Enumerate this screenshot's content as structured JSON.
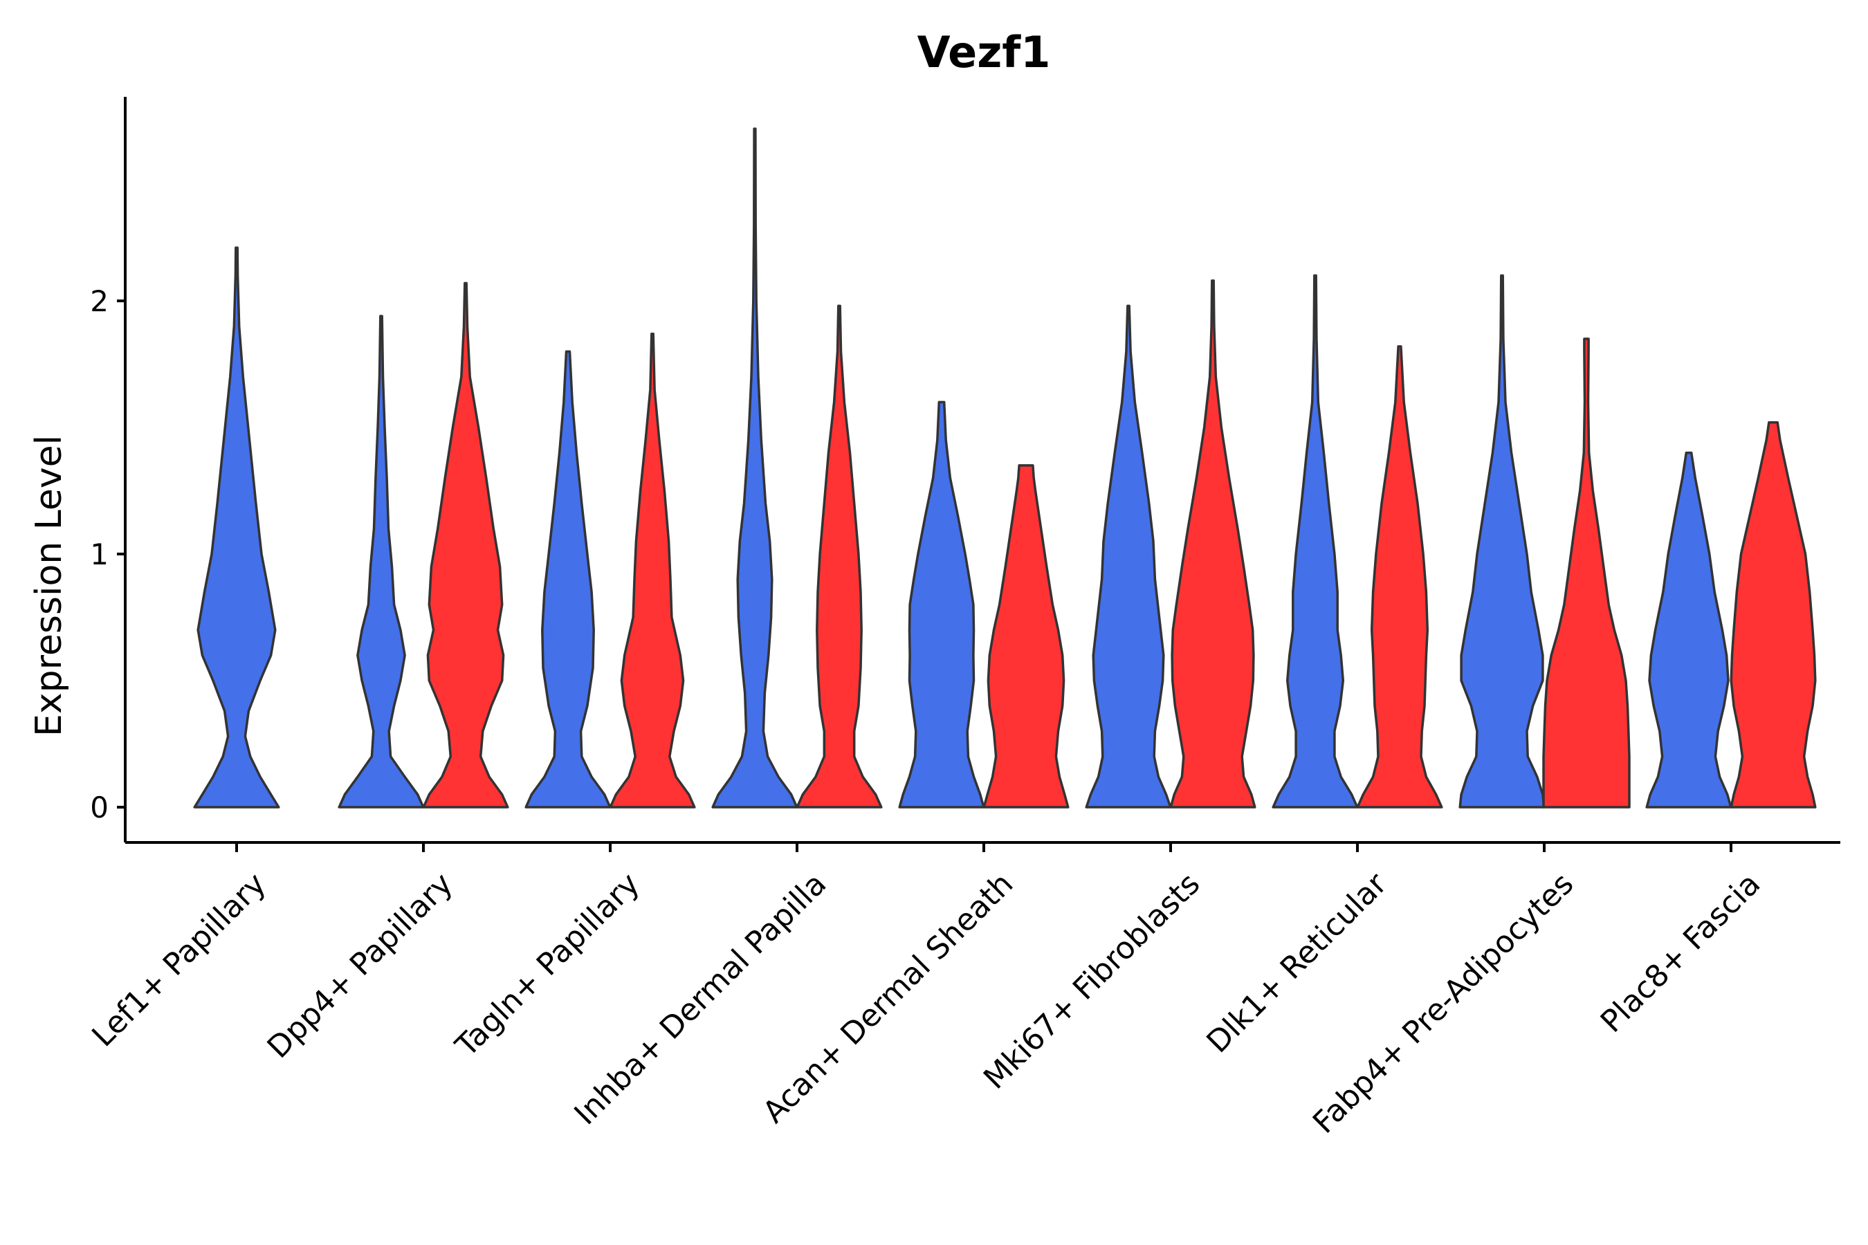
{
  "chart_data": {
    "type": "violin",
    "title": "Vezf1",
    "xlabel": "",
    "ylabel": "Expression Level",
    "ylim": [
      -0.13,
      2.8
    ],
    "yticks": [
      0,
      1,
      2
    ],
    "categories": [
      "Lef1+ Papillary",
      "Dpp4+ Papillary",
      "Tagln+ Papillary",
      "Inhba+ Dermal Papilla",
      "Acan+ Dermal Sheath",
      "Mki67+ Fibroblasts",
      "Dlk1+ Reticular",
      "Fabp4+ Pre-Adipocytes",
      "Plac8+ Fascia"
    ],
    "colors": {
      "blue": "#4470EA",
      "red": "#FF3333"
    },
    "violins": [
      {
        "category": "Lef1+ Papillary",
        "group": "blue",
        "offset": 0,
        "max": 2.21,
        "profile": [
          [
            0,
            0.98
          ],
          [
            0.05,
            0.8
          ],
          [
            0.12,
            0.55
          ],
          [
            0.2,
            0.32
          ],
          [
            0.28,
            0.2
          ],
          [
            0.38,
            0.28
          ],
          [
            0.5,
            0.55
          ],
          [
            0.6,
            0.8
          ],
          [
            0.7,
            0.9
          ],
          [
            0.85,
            0.75
          ],
          [
            1.0,
            0.58
          ],
          [
            1.2,
            0.45
          ],
          [
            1.45,
            0.3
          ],
          [
            1.7,
            0.15
          ],
          [
            1.9,
            0.06
          ],
          [
            2.1,
            0.025
          ],
          [
            2.21,
            0.02
          ]
        ]
      },
      {
        "category": "Dpp4+ Papillary",
        "group": "blue",
        "offset": -1,
        "max": 1.94,
        "profile": [
          [
            0,
            0.98
          ],
          [
            0.05,
            0.85
          ],
          [
            0.12,
            0.55
          ],
          [
            0.2,
            0.22
          ],
          [
            0.3,
            0.18
          ],
          [
            0.4,
            0.3
          ],
          [
            0.5,
            0.45
          ],
          [
            0.6,
            0.55
          ],
          [
            0.7,
            0.45
          ],
          [
            0.8,
            0.3
          ],
          [
            0.95,
            0.25
          ],
          [
            1.1,
            0.17
          ],
          [
            1.3,
            0.13
          ],
          [
            1.5,
            0.08
          ],
          [
            1.7,
            0.04
          ],
          [
            1.94,
            0.02
          ]
        ]
      },
      {
        "category": "Dpp4+ Papillary",
        "group": "red",
        "offset": 1,
        "max": 2.07,
        "profile": [
          [
            0,
            0.98
          ],
          [
            0.05,
            0.85
          ],
          [
            0.12,
            0.55
          ],
          [
            0.2,
            0.35
          ],
          [
            0.3,
            0.4
          ],
          [
            0.4,
            0.6
          ],
          [
            0.5,
            0.85
          ],
          [
            0.6,
            0.88
          ],
          [
            0.7,
            0.75
          ],
          [
            0.8,
            0.85
          ],
          [
            0.95,
            0.8
          ],
          [
            1.1,
            0.65
          ],
          [
            1.3,
            0.48
          ],
          [
            1.5,
            0.3
          ],
          [
            1.7,
            0.1
          ],
          [
            1.9,
            0.04
          ],
          [
            2.07,
            0.02
          ]
        ]
      },
      {
        "category": "Tagln+ Papillary",
        "group": "blue",
        "offset": -1,
        "max": 1.8,
        "profile": [
          [
            0,
            0.98
          ],
          [
            0.05,
            0.85
          ],
          [
            0.12,
            0.55
          ],
          [
            0.2,
            0.32
          ],
          [
            0.3,
            0.3
          ],
          [
            0.4,
            0.45
          ],
          [
            0.55,
            0.58
          ],
          [
            0.7,
            0.6
          ],
          [
            0.85,
            0.55
          ],
          [
            1.0,
            0.45
          ],
          [
            1.2,
            0.32
          ],
          [
            1.4,
            0.2
          ],
          [
            1.6,
            0.1
          ],
          [
            1.8,
            0.04
          ]
        ]
      },
      {
        "category": "Tagln+ Papillary",
        "group": "red",
        "offset": 1,
        "max": 1.87,
        "profile": [
          [
            0,
            0.98
          ],
          [
            0.05,
            0.85
          ],
          [
            0.12,
            0.55
          ],
          [
            0.2,
            0.4
          ],
          [
            0.3,
            0.5
          ],
          [
            0.4,
            0.65
          ],
          [
            0.5,
            0.72
          ],
          [
            0.6,
            0.65
          ],
          [
            0.75,
            0.45
          ],
          [
            0.9,
            0.42
          ],
          [
            1.05,
            0.38
          ],
          [
            1.25,
            0.28
          ],
          [
            1.45,
            0.16
          ],
          [
            1.65,
            0.05
          ],
          [
            1.87,
            0.02
          ]
        ]
      },
      {
        "category": "Inhba+ Dermal Papilla",
        "group": "blue",
        "offset": -1,
        "max": 2.68,
        "profile": [
          [
            0,
            0.98
          ],
          [
            0.05,
            0.85
          ],
          [
            0.12,
            0.55
          ],
          [
            0.2,
            0.3
          ],
          [
            0.3,
            0.2
          ],
          [
            0.45,
            0.23
          ],
          [
            0.6,
            0.32
          ],
          [
            0.75,
            0.38
          ],
          [
            0.9,
            0.4
          ],
          [
            1.05,
            0.35
          ],
          [
            1.2,
            0.25
          ],
          [
            1.45,
            0.15
          ],
          [
            1.7,
            0.08
          ],
          [
            2.0,
            0.035
          ],
          [
            2.3,
            0.02
          ],
          [
            2.68,
            0.015
          ]
        ]
      },
      {
        "category": "Inhba+ Dermal Papilla",
        "group": "red",
        "offset": 1,
        "max": 1.98,
        "profile": [
          [
            0,
            0.98
          ],
          [
            0.05,
            0.85
          ],
          [
            0.12,
            0.55
          ],
          [
            0.2,
            0.35
          ],
          [
            0.3,
            0.35
          ],
          [
            0.4,
            0.45
          ],
          [
            0.55,
            0.5
          ],
          [
            0.7,
            0.52
          ],
          [
            0.85,
            0.5
          ],
          [
            1.0,
            0.45
          ],
          [
            1.2,
            0.35
          ],
          [
            1.4,
            0.25
          ],
          [
            1.6,
            0.12
          ],
          [
            1.8,
            0.04
          ],
          [
            1.98,
            0.02
          ]
        ]
      },
      {
        "category": "Acan+ Dermal Sheath",
        "group": "blue",
        "offset": -1,
        "max": 1.6,
        "profile": [
          [
            0,
            0.98
          ],
          [
            0.05,
            0.9
          ],
          [
            0.12,
            0.75
          ],
          [
            0.2,
            0.62
          ],
          [
            0.3,
            0.6
          ],
          [
            0.4,
            0.68
          ],
          [
            0.5,
            0.75
          ],
          [
            0.6,
            0.74
          ],
          [
            0.7,
            0.75
          ],
          [
            0.8,
            0.74
          ],
          [
            0.9,
            0.65
          ],
          [
            1.0,
            0.55
          ],
          [
            1.15,
            0.38
          ],
          [
            1.3,
            0.2
          ],
          [
            1.45,
            0.1
          ],
          [
            1.6,
            0.06
          ]
        ]
      },
      {
        "category": "Acan+ Dermal Sheath",
        "group": "red",
        "offset": 1,
        "max": 1.35,
        "profile": [
          [
            0,
            0.98
          ],
          [
            0.05,
            0.9
          ],
          [
            0.12,
            0.78
          ],
          [
            0.2,
            0.7
          ],
          [
            0.3,
            0.75
          ],
          [
            0.4,
            0.85
          ],
          [
            0.5,
            0.88
          ],
          [
            0.6,
            0.85
          ],
          [
            0.7,
            0.75
          ],
          [
            0.8,
            0.62
          ],
          [
            0.95,
            0.48
          ],
          [
            1.1,
            0.35
          ],
          [
            1.25,
            0.22
          ],
          [
            1.3,
            0.18
          ],
          [
            1.35,
            0.16
          ]
        ]
      },
      {
        "category": "Mki67+ Fibroblasts",
        "group": "blue",
        "offset": -1,
        "max": 1.98,
        "profile": [
          [
            0,
            0.98
          ],
          [
            0.05,
            0.88
          ],
          [
            0.12,
            0.7
          ],
          [
            0.2,
            0.6
          ],
          [
            0.3,
            0.62
          ],
          [
            0.4,
            0.72
          ],
          [
            0.5,
            0.8
          ],
          [
            0.6,
            0.82
          ],
          [
            0.75,
            0.72
          ],
          [
            0.9,
            0.62
          ],
          [
            1.05,
            0.58
          ],
          [
            1.2,
            0.48
          ],
          [
            1.4,
            0.32
          ],
          [
            1.6,
            0.15
          ],
          [
            1.8,
            0.05
          ],
          [
            1.98,
            0.02
          ]
        ]
      },
      {
        "category": "Mki67+ Fibroblasts",
        "group": "red",
        "offset": 1,
        "max": 2.08,
        "profile": [
          [
            0,
            0.98
          ],
          [
            0.05,
            0.9
          ],
          [
            0.12,
            0.72
          ],
          [
            0.2,
            0.68
          ],
          [
            0.3,
            0.78
          ],
          [
            0.4,
            0.88
          ],
          [
            0.5,
            0.94
          ],
          [
            0.6,
            0.95
          ],
          [
            0.7,
            0.93
          ],
          [
            0.8,
            0.85
          ],
          [
            0.95,
            0.72
          ],
          [
            1.1,
            0.58
          ],
          [
            1.3,
            0.38
          ],
          [
            1.5,
            0.2
          ],
          [
            1.7,
            0.07
          ],
          [
            1.9,
            0.03
          ],
          [
            2.08,
            0.02
          ]
        ]
      },
      {
        "category": "Dlk1+ Reticular",
        "group": "blue",
        "offset": -1,
        "max": 2.1,
        "profile": [
          [
            0,
            0.98
          ],
          [
            0.05,
            0.85
          ],
          [
            0.12,
            0.6
          ],
          [
            0.2,
            0.45
          ],
          [
            0.3,
            0.45
          ],
          [
            0.4,
            0.58
          ],
          [
            0.5,
            0.65
          ],
          [
            0.6,
            0.6
          ],
          [
            0.7,
            0.52
          ],
          [
            0.85,
            0.52
          ],
          [
            1.0,
            0.45
          ],
          [
            1.2,
            0.32
          ],
          [
            1.4,
            0.2
          ],
          [
            1.6,
            0.07
          ],
          [
            1.85,
            0.03
          ],
          [
            2.1,
            0.02
          ]
        ]
      },
      {
        "category": "Dlk1+ Reticular",
        "group": "red",
        "offset": 1,
        "max": 1.82,
        "profile": [
          [
            0,
            0.98
          ],
          [
            0.05,
            0.85
          ],
          [
            0.12,
            0.62
          ],
          [
            0.2,
            0.5
          ],
          [
            0.3,
            0.52
          ],
          [
            0.4,
            0.58
          ],
          [
            0.5,
            0.6
          ],
          [
            0.6,
            0.62
          ],
          [
            0.7,
            0.65
          ],
          [
            0.85,
            0.62
          ],
          [
            1.0,
            0.55
          ],
          [
            1.2,
            0.42
          ],
          [
            1.4,
            0.25
          ],
          [
            1.6,
            0.1
          ],
          [
            1.82,
            0.03
          ]
        ]
      },
      {
        "category": "Fabp4+ Pre-Adipocytes",
        "group": "blue",
        "offset": -1,
        "max": 2.1,
        "profile": [
          [
            0,
            0.98
          ],
          [
            0.05,
            0.95
          ],
          [
            0.12,
            0.82
          ],
          [
            0.2,
            0.6
          ],
          [
            0.3,
            0.58
          ],
          [
            0.4,
            0.72
          ],
          [
            0.5,
            0.95
          ],
          [
            0.6,
            0.95
          ],
          [
            0.7,
            0.85
          ],
          [
            0.85,
            0.68
          ],
          [
            1.0,
            0.58
          ],
          [
            1.2,
            0.4
          ],
          [
            1.4,
            0.22
          ],
          [
            1.6,
            0.08
          ],
          [
            1.85,
            0.03
          ],
          [
            2.1,
            0.02
          ]
        ]
      },
      {
        "category": "Fabp4+ Pre-Adipocytes",
        "group": "red",
        "offset": 1,
        "max": 1.85,
        "profile": [
          [
            0,
            1.0
          ],
          [
            0.1,
            1.0
          ],
          [
            0.2,
            1.0
          ],
          [
            0.3,
            0.98
          ],
          [
            0.4,
            0.96
          ],
          [
            0.5,
            0.92
          ],
          [
            0.6,
            0.82
          ],
          [
            0.7,
            0.65
          ],
          [
            0.8,
            0.52
          ],
          [
            0.95,
            0.4
          ],
          [
            1.1,
            0.28
          ],
          [
            1.25,
            0.15
          ],
          [
            1.4,
            0.06
          ],
          [
            1.6,
            0.04
          ],
          [
            1.8,
            0.05
          ],
          [
            1.85,
            0.05
          ]
        ]
      },
      {
        "category": "Plac8+ Fascia",
        "group": "blue",
        "offset": -1,
        "max": 1.4,
        "profile": [
          [
            0,
            0.98
          ],
          [
            0.05,
            0.9
          ],
          [
            0.12,
            0.72
          ],
          [
            0.2,
            0.62
          ],
          [
            0.3,
            0.68
          ],
          [
            0.4,
            0.82
          ],
          [
            0.5,
            0.92
          ],
          [
            0.6,
            0.88
          ],
          [
            0.7,
            0.78
          ],
          [
            0.85,
            0.6
          ],
          [
            1.0,
            0.48
          ],
          [
            1.15,
            0.32
          ],
          [
            1.3,
            0.15
          ],
          [
            1.4,
            0.06
          ]
        ]
      },
      {
        "category": "Plac8+ Fascia",
        "group": "red",
        "offset": 1,
        "max": 1.52,
        "profile": [
          [
            0,
            0.98
          ],
          [
            0.05,
            0.92
          ],
          [
            0.12,
            0.8
          ],
          [
            0.2,
            0.72
          ],
          [
            0.3,
            0.8
          ],
          [
            0.4,
            0.92
          ],
          [
            0.5,
            0.98
          ],
          [
            0.6,
            0.96
          ],
          [
            0.7,
            0.92
          ],
          [
            0.85,
            0.85
          ],
          [
            1.0,
            0.75
          ],
          [
            1.15,
            0.55
          ],
          [
            1.3,
            0.35
          ],
          [
            1.45,
            0.16
          ],
          [
            1.52,
            0.1
          ]
        ]
      }
    ]
  }
}
